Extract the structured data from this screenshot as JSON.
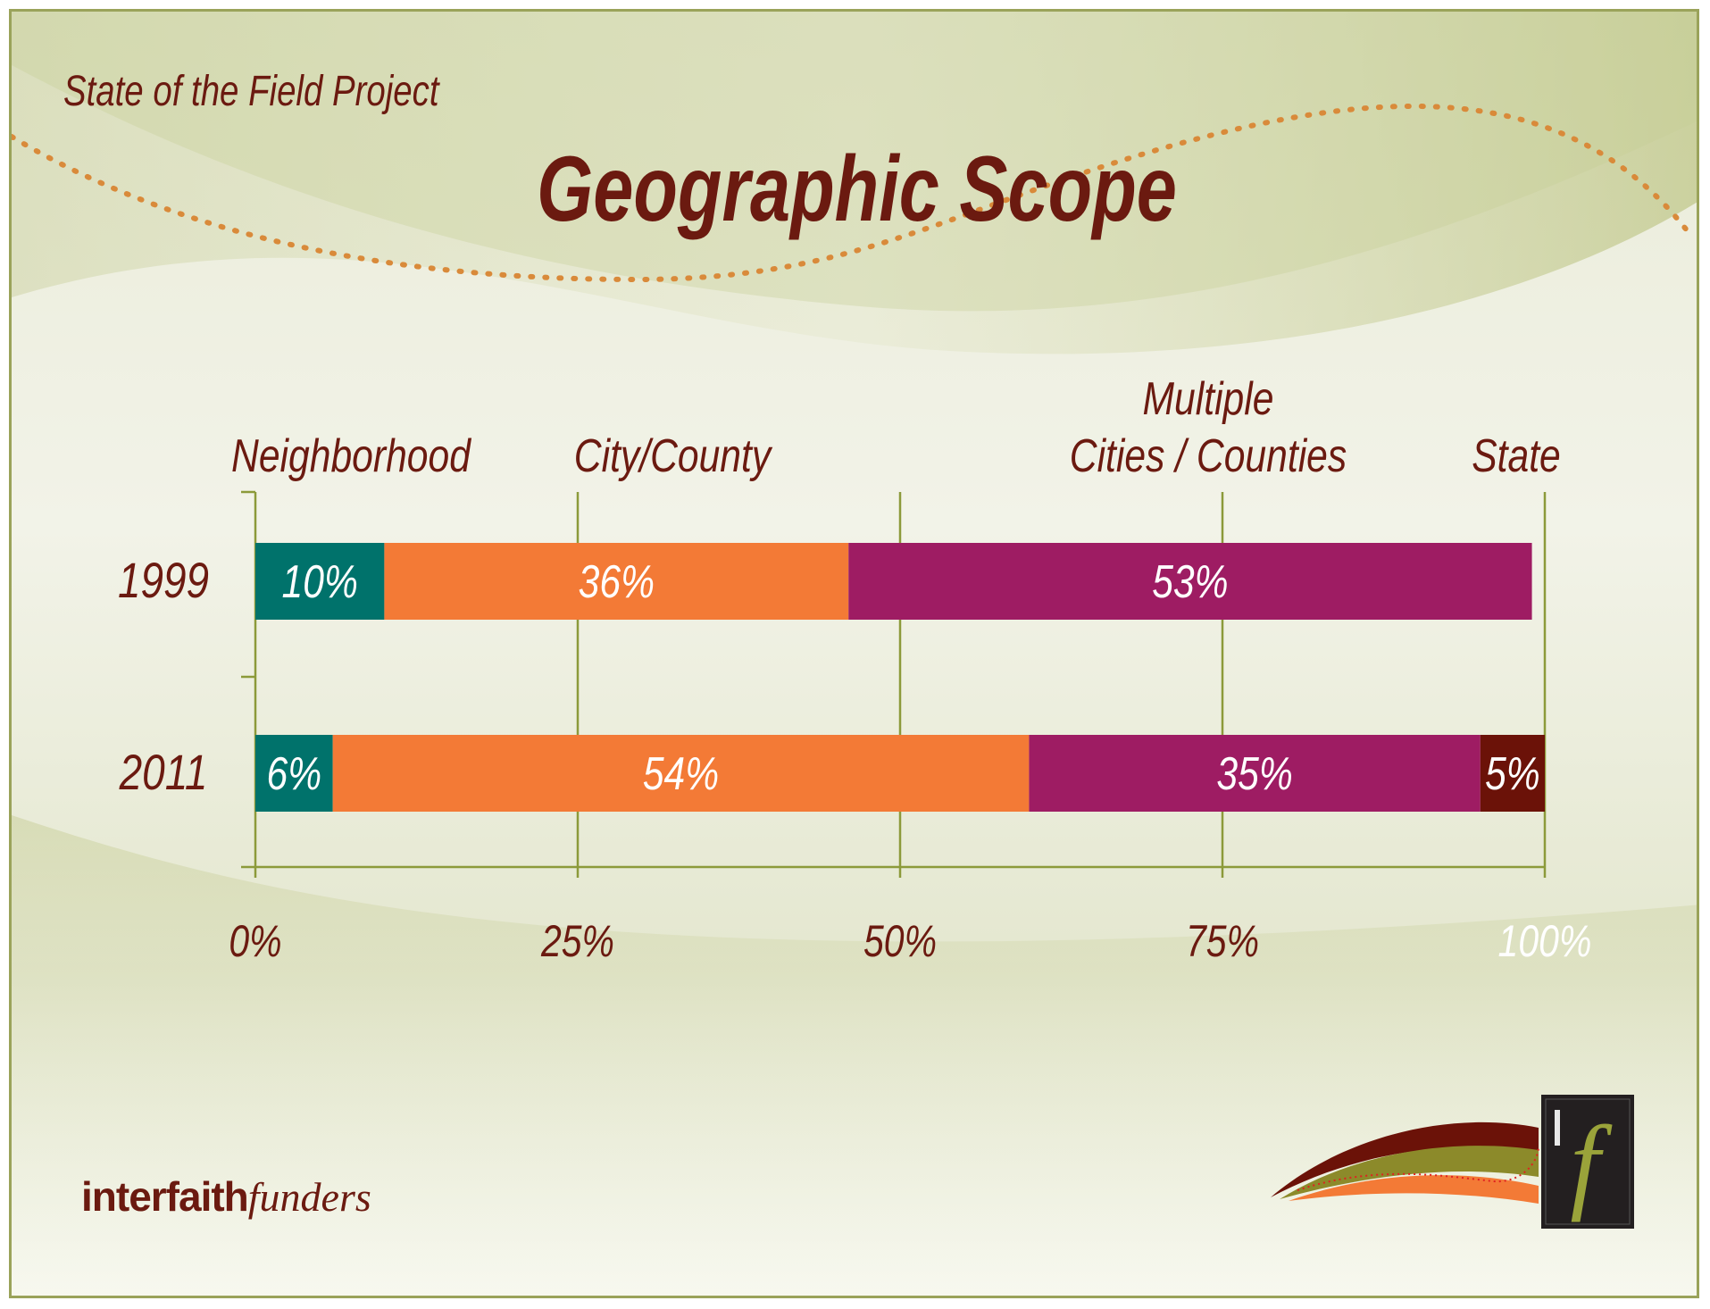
{
  "header": {
    "subtitle": "State of the Field Project",
    "title": "Geographic Scope"
  },
  "brand": {
    "part1": "interfaith",
    "part2": "funders"
  },
  "colors": {
    "title": "#6b1a10",
    "neighborhood": "#00726b",
    "city_county": "#f37a36",
    "multiple": "#9e1c63",
    "state": "#6b1208",
    "axis": "#8c9a3a",
    "dots": "#d98a3a"
  },
  "chart_data": {
    "type": "bar",
    "orientation": "horizontal",
    "stacked": true,
    "categories": [
      "1999",
      "2011"
    ],
    "series": [
      {
        "name": "Neighborhood",
        "values": [
          10,
          6
        ],
        "labels": [
          "10%",
          "6%"
        ],
        "color": "#00726b"
      },
      {
        "name": "City/County",
        "values": [
          36,
          54
        ],
        "labels": [
          "36%",
          "54%"
        ],
        "color": "#f37a36"
      },
      {
        "name": "Multiple Cities / Counties",
        "values": [
          53,
          35
        ],
        "labels": [
          "53%",
          "35%"
        ],
        "color": "#9e1c63"
      },
      {
        "name": "State",
        "values": [
          0,
          5
        ],
        "labels": [
          "",
          "5%"
        ],
        "color": "#6b1208"
      }
    ],
    "legend_lines": [
      [
        "Neighborhood"
      ],
      [
        "City/County"
      ],
      [
        "Multiple",
        "Cities / Counties"
      ],
      [
        "State"
      ]
    ],
    "xlim": [
      0,
      100
    ],
    "xticks": [
      0,
      25,
      50,
      75,
      100
    ],
    "xtick_labels": [
      "0%",
      "25%",
      "50%",
      "75%",
      "100%"
    ],
    "grid": true,
    "legend_placement": "top"
  }
}
